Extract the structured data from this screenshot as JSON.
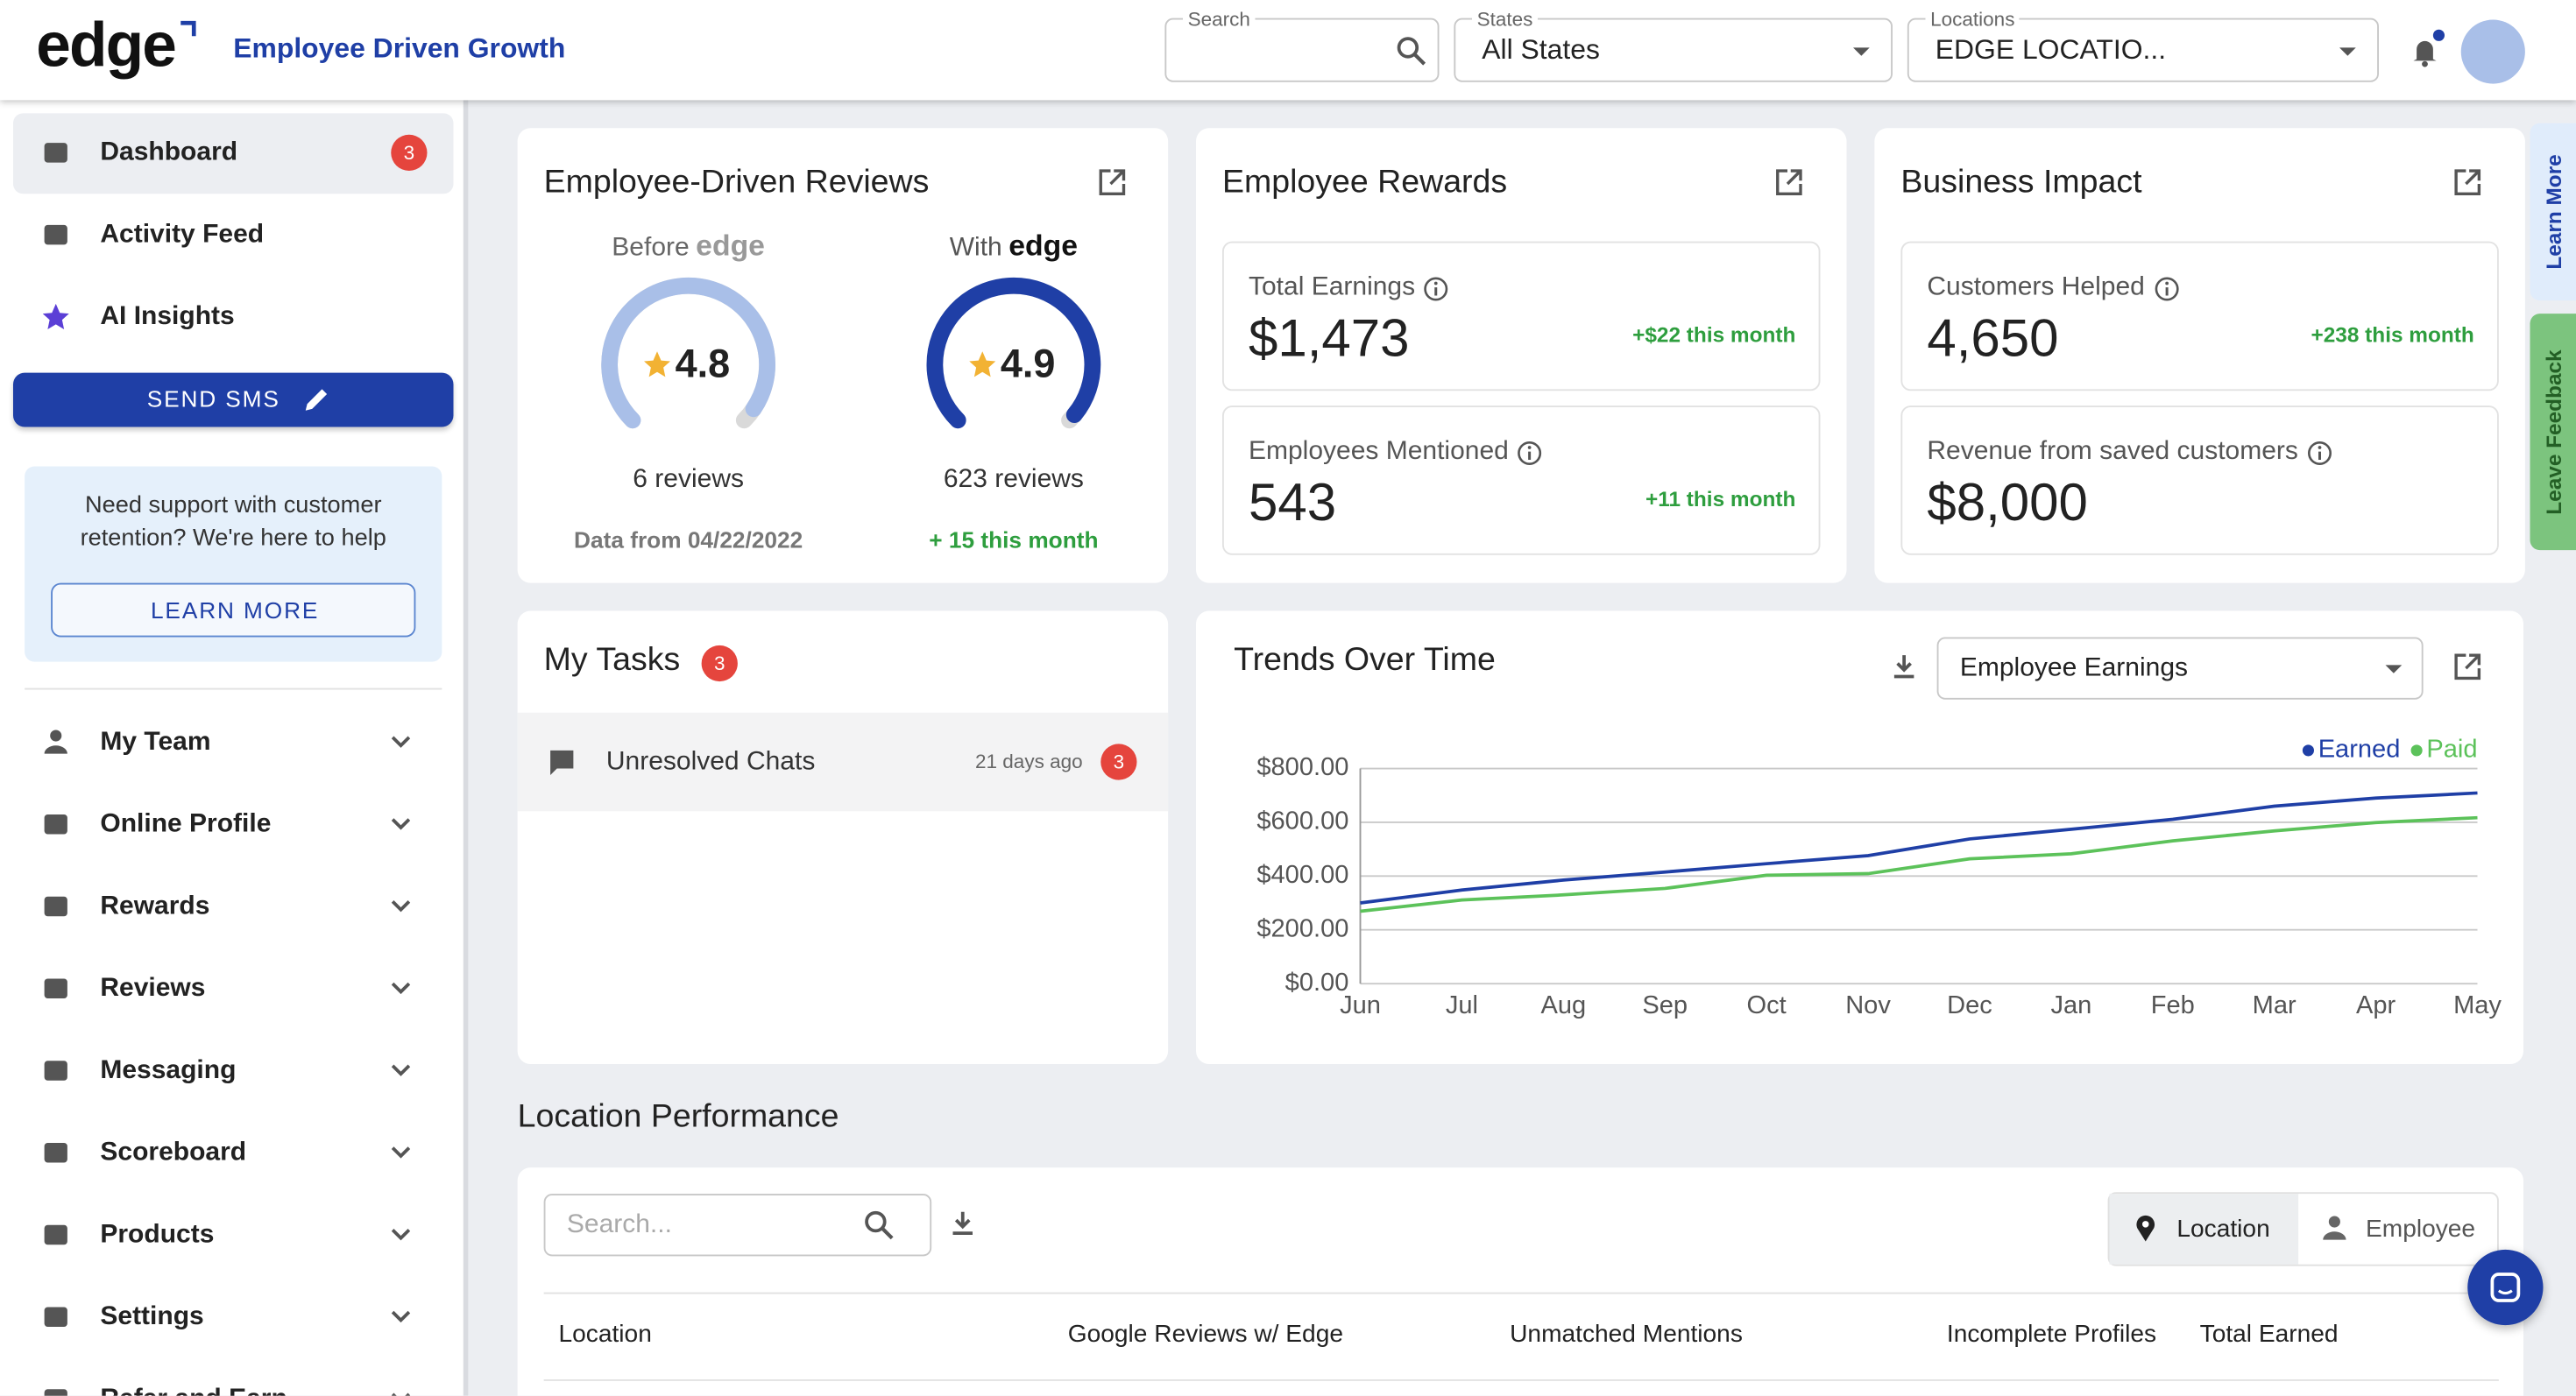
{
  "header": {
    "logo": "edge",
    "tagline": "Employee Driven Growth",
    "search_label": "Search",
    "states_label": "States",
    "states_value": "All States",
    "locations_label": "Locations",
    "locations_value": "EDGE LOCATIO..."
  },
  "sidebar": {
    "top_items": [
      {
        "label": "Dashboard",
        "badge": 3
      },
      {
        "label": "Activity Feed"
      },
      {
        "label": "AI Insights"
      }
    ],
    "send_sms": "SEND SMS",
    "support_text": "Need support with customer retention? We're here to help",
    "learn_more": "LEARN MORE",
    "menu": [
      "My Team",
      "Online Profile",
      "Rewards",
      "Reviews",
      "Messaging",
      "Scoreboard",
      "Products",
      "Settings",
      "Refer and Earn"
    ]
  },
  "reviews_card": {
    "title": "Employee-Driven Reviews",
    "before_label": "Before",
    "before_rating": 4.8,
    "before_reviews": "6 reviews",
    "before_note": "Data from 04/22/2022",
    "with_label": "With",
    "with_rating": 4.9,
    "with_reviews": "623 reviews",
    "with_note": "+ 15 this month"
  },
  "rewards_card": {
    "title": "Employee Rewards",
    "stats": [
      {
        "label": "Total Earnings",
        "value": "$1,473",
        "delta": "+$22 this month"
      },
      {
        "label": "Employees Mentioned",
        "value": "543",
        "delta": "+11 this month"
      }
    ]
  },
  "business_card": {
    "title": "Business Impact",
    "stats": [
      {
        "label": "Customers Helped",
        "value": "4,650",
        "delta": "+238 this month"
      },
      {
        "label": "Revenue from saved customers",
        "value": "$8,000"
      }
    ]
  },
  "tasks_card": {
    "title": "My Tasks",
    "badge": 3,
    "items": [
      {
        "label": "Unresolved Chats",
        "time": "21 days ago",
        "badge": 3
      }
    ]
  },
  "chart_data": {
    "type": "line",
    "title": "Trends Over Time",
    "dropdown": "Employee Earnings",
    "categories": [
      "Jun",
      "Jul",
      "Aug",
      "Sep",
      "Oct",
      "Nov",
      "Dec",
      "Jan",
      "Feb",
      "Mar",
      "Apr",
      "May"
    ],
    "series": [
      {
        "name": "Earned",
        "color": "#1f3fa6",
        "values": [
          300,
          348,
          385,
          415,
          446,
          476,
          538,
          574,
          611,
          660,
          690,
          709
        ]
      },
      {
        "name": "Paid",
        "color": "#5cc25a",
        "values": [
          269,
          311,
          330,
          354,
          403,
          409,
          464,
          483,
          531,
          568,
          599,
          617
        ]
      }
    ],
    "ylim": [
      0,
      800
    ],
    "yticks": [
      {
        "value": 0,
        "label": "$0.00"
      },
      {
        "value": 200,
        "label": "$200.00"
      },
      {
        "value": 400,
        "label": "$400.00"
      },
      {
        "value": 600,
        "label": "$600.00"
      },
      {
        "value": 800,
        "label": "$800.00"
      }
    ],
    "grid": true,
    "legend": "top-right"
  },
  "location_performance": {
    "title": "Location Performance",
    "search_placeholder": "Search...",
    "toggle": [
      "Location",
      "Employee"
    ],
    "columns": [
      "Location",
      "Google Reviews w/ Edge",
      "Unmatched Mentions",
      "Incomplete Profiles",
      "Total Earned"
    ]
  },
  "side_tabs": [
    "Learn More",
    "Leave Feedback"
  ]
}
